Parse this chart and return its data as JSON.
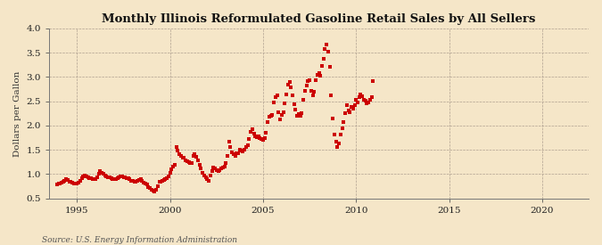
{
  "title": "Monthly Illinois Reformulated Gasoline Retail Sales by All Sellers",
  "ylabel": "Dollars per Gallon",
  "source": "Source: U.S. Energy Information Administration",
  "bg_color": "#f5e6c8",
  "plot_bg_color": "#f5e6c8",
  "dot_color": "#cc0000",
  "ylim": [
    0.5,
    4.0
  ],
  "yticks": [
    0.5,
    1.0,
    1.5,
    2.0,
    2.5,
    3.0,
    3.5,
    4.0
  ],
  "xlim_start": 1993.5,
  "xlim_end": 2022.5,
  "xticks": [
    1995,
    2000,
    2005,
    2010,
    2015,
    2020
  ],
  "data": [
    [
      1993.917,
      0.795
    ],
    [
      1994.0,
      0.8
    ],
    [
      1994.083,
      0.81
    ],
    [
      1994.167,
      0.82
    ],
    [
      1994.25,
      0.84
    ],
    [
      1994.333,
      0.87
    ],
    [
      1994.417,
      0.89
    ],
    [
      1994.5,
      0.88
    ],
    [
      1994.583,
      0.85
    ],
    [
      1994.667,
      0.84
    ],
    [
      1994.75,
      0.83
    ],
    [
      1994.833,
      0.81
    ],
    [
      1994.917,
      0.8
    ],
    [
      1995.0,
      0.81
    ],
    [
      1995.083,
      0.83
    ],
    [
      1995.167,
      0.87
    ],
    [
      1995.25,
      0.92
    ],
    [
      1995.333,
      0.96
    ],
    [
      1995.417,
      0.97
    ],
    [
      1995.5,
      0.95
    ],
    [
      1995.583,
      0.93
    ],
    [
      1995.667,
      0.92
    ],
    [
      1995.75,
      0.91
    ],
    [
      1995.833,
      0.9
    ],
    [
      1995.917,
      0.89
    ],
    [
      1996.0,
      0.9
    ],
    [
      1996.083,
      0.94
    ],
    [
      1996.167,
      1.01
    ],
    [
      1996.25,
      1.06
    ],
    [
      1996.333,
      1.03
    ],
    [
      1996.417,
      1.0
    ],
    [
      1996.5,
      0.97
    ],
    [
      1996.583,
      0.95
    ],
    [
      1996.667,
      0.94
    ],
    [
      1996.75,
      0.93
    ],
    [
      1996.833,
      0.91
    ],
    [
      1996.917,
      0.89
    ],
    [
      1997.0,
      0.89
    ],
    [
      1997.083,
      0.9
    ],
    [
      1997.167,
      0.92
    ],
    [
      1997.25,
      0.94
    ],
    [
      1997.333,
      0.95
    ],
    [
      1997.417,
      0.96
    ],
    [
      1997.5,
      0.94
    ],
    [
      1997.583,
      0.93
    ],
    [
      1997.667,
      0.92
    ],
    [
      1997.75,
      0.91
    ],
    [
      1997.833,
      0.89
    ],
    [
      1997.917,
      0.87
    ],
    [
      1998.0,
      0.86
    ],
    [
      1998.083,
      0.84
    ],
    [
      1998.167,
      0.84
    ],
    [
      1998.25,
      0.86
    ],
    [
      1998.333,
      0.88
    ],
    [
      1998.417,
      0.89
    ],
    [
      1998.5,
      0.86
    ],
    [
      1998.583,
      0.83
    ],
    [
      1998.667,
      0.81
    ],
    [
      1998.75,
      0.79
    ],
    [
      1998.833,
      0.74
    ],
    [
      1998.917,
      0.72
    ],
    [
      1999.0,
      0.68
    ],
    [
      1999.083,
      0.66
    ],
    [
      1999.167,
      0.64
    ],
    [
      1999.25,
      0.67
    ],
    [
      1999.333,
      0.76
    ],
    [
      1999.417,
      0.84
    ],
    [
      1999.5,
      0.85
    ],
    [
      1999.583,
      0.86
    ],
    [
      1999.667,
      0.88
    ],
    [
      1999.75,
      0.9
    ],
    [
      1999.833,
      0.91
    ],
    [
      1999.917,
      0.96
    ],
    [
      2000.0,
      1.02
    ],
    [
      2000.083,
      1.1
    ],
    [
      2000.167,
      1.16
    ],
    [
      2000.25,
      1.2
    ],
    [
      2000.333,
      1.56
    ],
    [
      2000.417,
      1.48
    ],
    [
      2000.5,
      1.42
    ],
    [
      2000.583,
      1.37
    ],
    [
      2000.667,
      1.34
    ],
    [
      2000.75,
      1.33
    ],
    [
      2000.833,
      1.29
    ],
    [
      2000.917,
      1.27
    ],
    [
      2001.0,
      1.24
    ],
    [
      2001.083,
      1.22
    ],
    [
      2001.167,
      1.23
    ],
    [
      2001.25,
      1.38
    ],
    [
      2001.333,
      1.41
    ],
    [
      2001.417,
      1.36
    ],
    [
      2001.5,
      1.28
    ],
    [
      2001.583,
      1.2
    ],
    [
      2001.667,
      1.11
    ],
    [
      2001.75,
      1.03
    ],
    [
      2001.833,
      0.98
    ],
    [
      2001.917,
      0.93
    ],
    [
      2002.0,
      0.89
    ],
    [
      2002.083,
      0.87
    ],
    [
      2002.167,
      0.98
    ],
    [
      2002.25,
      1.06
    ],
    [
      2002.333,
      1.13
    ],
    [
      2002.417,
      1.11
    ],
    [
      2002.5,
      1.09
    ],
    [
      2002.583,
      1.07
    ],
    [
      2002.667,
      1.09
    ],
    [
      2002.75,
      1.11
    ],
    [
      2002.833,
      1.13
    ],
    [
      2002.917,
      1.16
    ],
    [
      2003.0,
      1.22
    ],
    [
      2003.083,
      1.38
    ],
    [
      2003.167,
      1.66
    ],
    [
      2003.25,
      1.56
    ],
    [
      2003.333,
      1.44
    ],
    [
      2003.417,
      1.42
    ],
    [
      2003.5,
      1.38
    ],
    [
      2003.583,
      1.43
    ],
    [
      2003.667,
      1.43
    ],
    [
      2003.75,
      1.5
    ],
    [
      2003.833,
      1.49
    ],
    [
      2003.917,
      1.47
    ],
    [
      2004.0,
      1.51
    ],
    [
      2004.083,
      1.56
    ],
    [
      2004.167,
      1.6
    ],
    [
      2004.25,
      1.72
    ],
    [
      2004.333,
      1.88
    ],
    [
      2004.417,
      1.92
    ],
    [
      2004.5,
      1.84
    ],
    [
      2004.583,
      1.78
    ],
    [
      2004.667,
      1.76
    ],
    [
      2004.75,
      1.78
    ],
    [
      2004.833,
      1.75
    ],
    [
      2004.917,
      1.72
    ],
    [
      2005.0,
      1.7
    ],
    [
      2005.083,
      1.75
    ],
    [
      2005.167,
      1.86
    ],
    [
      2005.25,
      2.08
    ],
    [
      2005.333,
      2.18
    ],
    [
      2005.417,
      2.2
    ],
    [
      2005.5,
      2.22
    ],
    [
      2005.583,
      2.48
    ],
    [
      2005.667,
      2.58
    ],
    [
      2005.75,
      2.62
    ],
    [
      2005.833,
      2.27
    ],
    [
      2005.917,
      2.12
    ],
    [
      2006.0,
      2.22
    ],
    [
      2006.083,
      2.28
    ],
    [
      2006.167,
      2.45
    ],
    [
      2006.25,
      2.64
    ],
    [
      2006.333,
      2.84
    ],
    [
      2006.417,
      2.9
    ],
    [
      2006.5,
      2.78
    ],
    [
      2006.583,
      2.62
    ],
    [
      2006.667,
      2.44
    ],
    [
      2006.75,
      2.33
    ],
    [
      2006.833,
      2.21
    ],
    [
      2006.917,
      2.23
    ],
    [
      2007.0,
      2.21
    ],
    [
      2007.083,
      2.25
    ],
    [
      2007.167,
      2.54
    ],
    [
      2007.25,
      2.72
    ],
    [
      2007.333,
      2.83
    ],
    [
      2007.417,
      2.92
    ],
    [
      2007.5,
      2.94
    ],
    [
      2007.583,
      2.72
    ],
    [
      2007.667,
      2.62
    ],
    [
      2007.75,
      2.7
    ],
    [
      2007.833,
      2.94
    ],
    [
      2007.917,
      3.05
    ],
    [
      2008.0,
      3.08
    ],
    [
      2008.083,
      3.03
    ],
    [
      2008.167,
      3.23
    ],
    [
      2008.25,
      3.37
    ],
    [
      2008.333,
      3.58
    ],
    [
      2008.417,
      3.67
    ],
    [
      2008.5,
      3.53
    ],
    [
      2008.583,
      3.21
    ],
    [
      2008.667,
      2.63
    ],
    [
      2008.75,
      2.14
    ],
    [
      2008.833,
      1.82
    ],
    [
      2008.917,
      1.67
    ],
    [
      2009.0,
      1.56
    ],
    [
      2009.083,
      1.64
    ],
    [
      2009.167,
      1.81
    ],
    [
      2009.25,
      1.95
    ],
    [
      2009.333,
      2.08
    ],
    [
      2009.417,
      2.25
    ],
    [
      2009.5,
      2.43
    ],
    [
      2009.583,
      2.32
    ],
    [
      2009.667,
      2.28
    ],
    [
      2009.75,
      2.39
    ],
    [
      2009.833,
      2.35
    ],
    [
      2009.917,
      2.43
    ],
    [
      2010.0,
      2.53
    ],
    [
      2010.083,
      2.47
    ],
    [
      2010.167,
      2.58
    ],
    [
      2010.25,
      2.65
    ],
    [
      2010.333,
      2.6
    ],
    [
      2010.417,
      2.54
    ],
    [
      2010.5,
      2.51
    ],
    [
      2010.583,
      2.46
    ],
    [
      2010.667,
      2.48
    ],
    [
      2010.75,
      2.53
    ],
    [
      2010.833,
      2.59
    ],
    [
      2010.917,
      2.92
    ]
  ]
}
